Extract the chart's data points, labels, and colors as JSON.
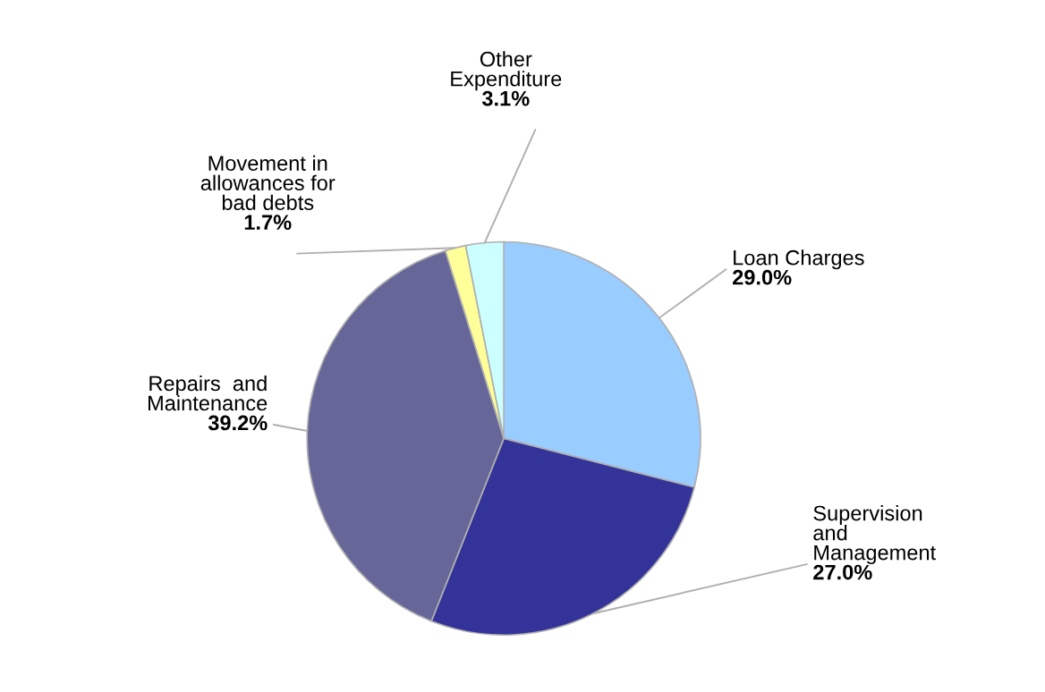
{
  "chart_data": {
    "type": "pie",
    "categories": [
      "Loan Charges",
      "Supervision\nand\nManagement",
      "Repairs  and\nMaintenance",
      "Movement in\nallowances for\nbad debts",
      "Other\nExpenditure"
    ],
    "values": [
      29.0,
      27.0,
      39.2,
      1.7,
      3.1
    ],
    "value_labels": [
      "29.0%",
      "27.0%",
      "39.2%",
      "1.7%",
      "3.1%"
    ],
    "colors": [
      "#99ccff",
      "#333399",
      "#666699",
      "#ffff99",
      "#ccffff"
    ],
    "legend": false
  }
}
